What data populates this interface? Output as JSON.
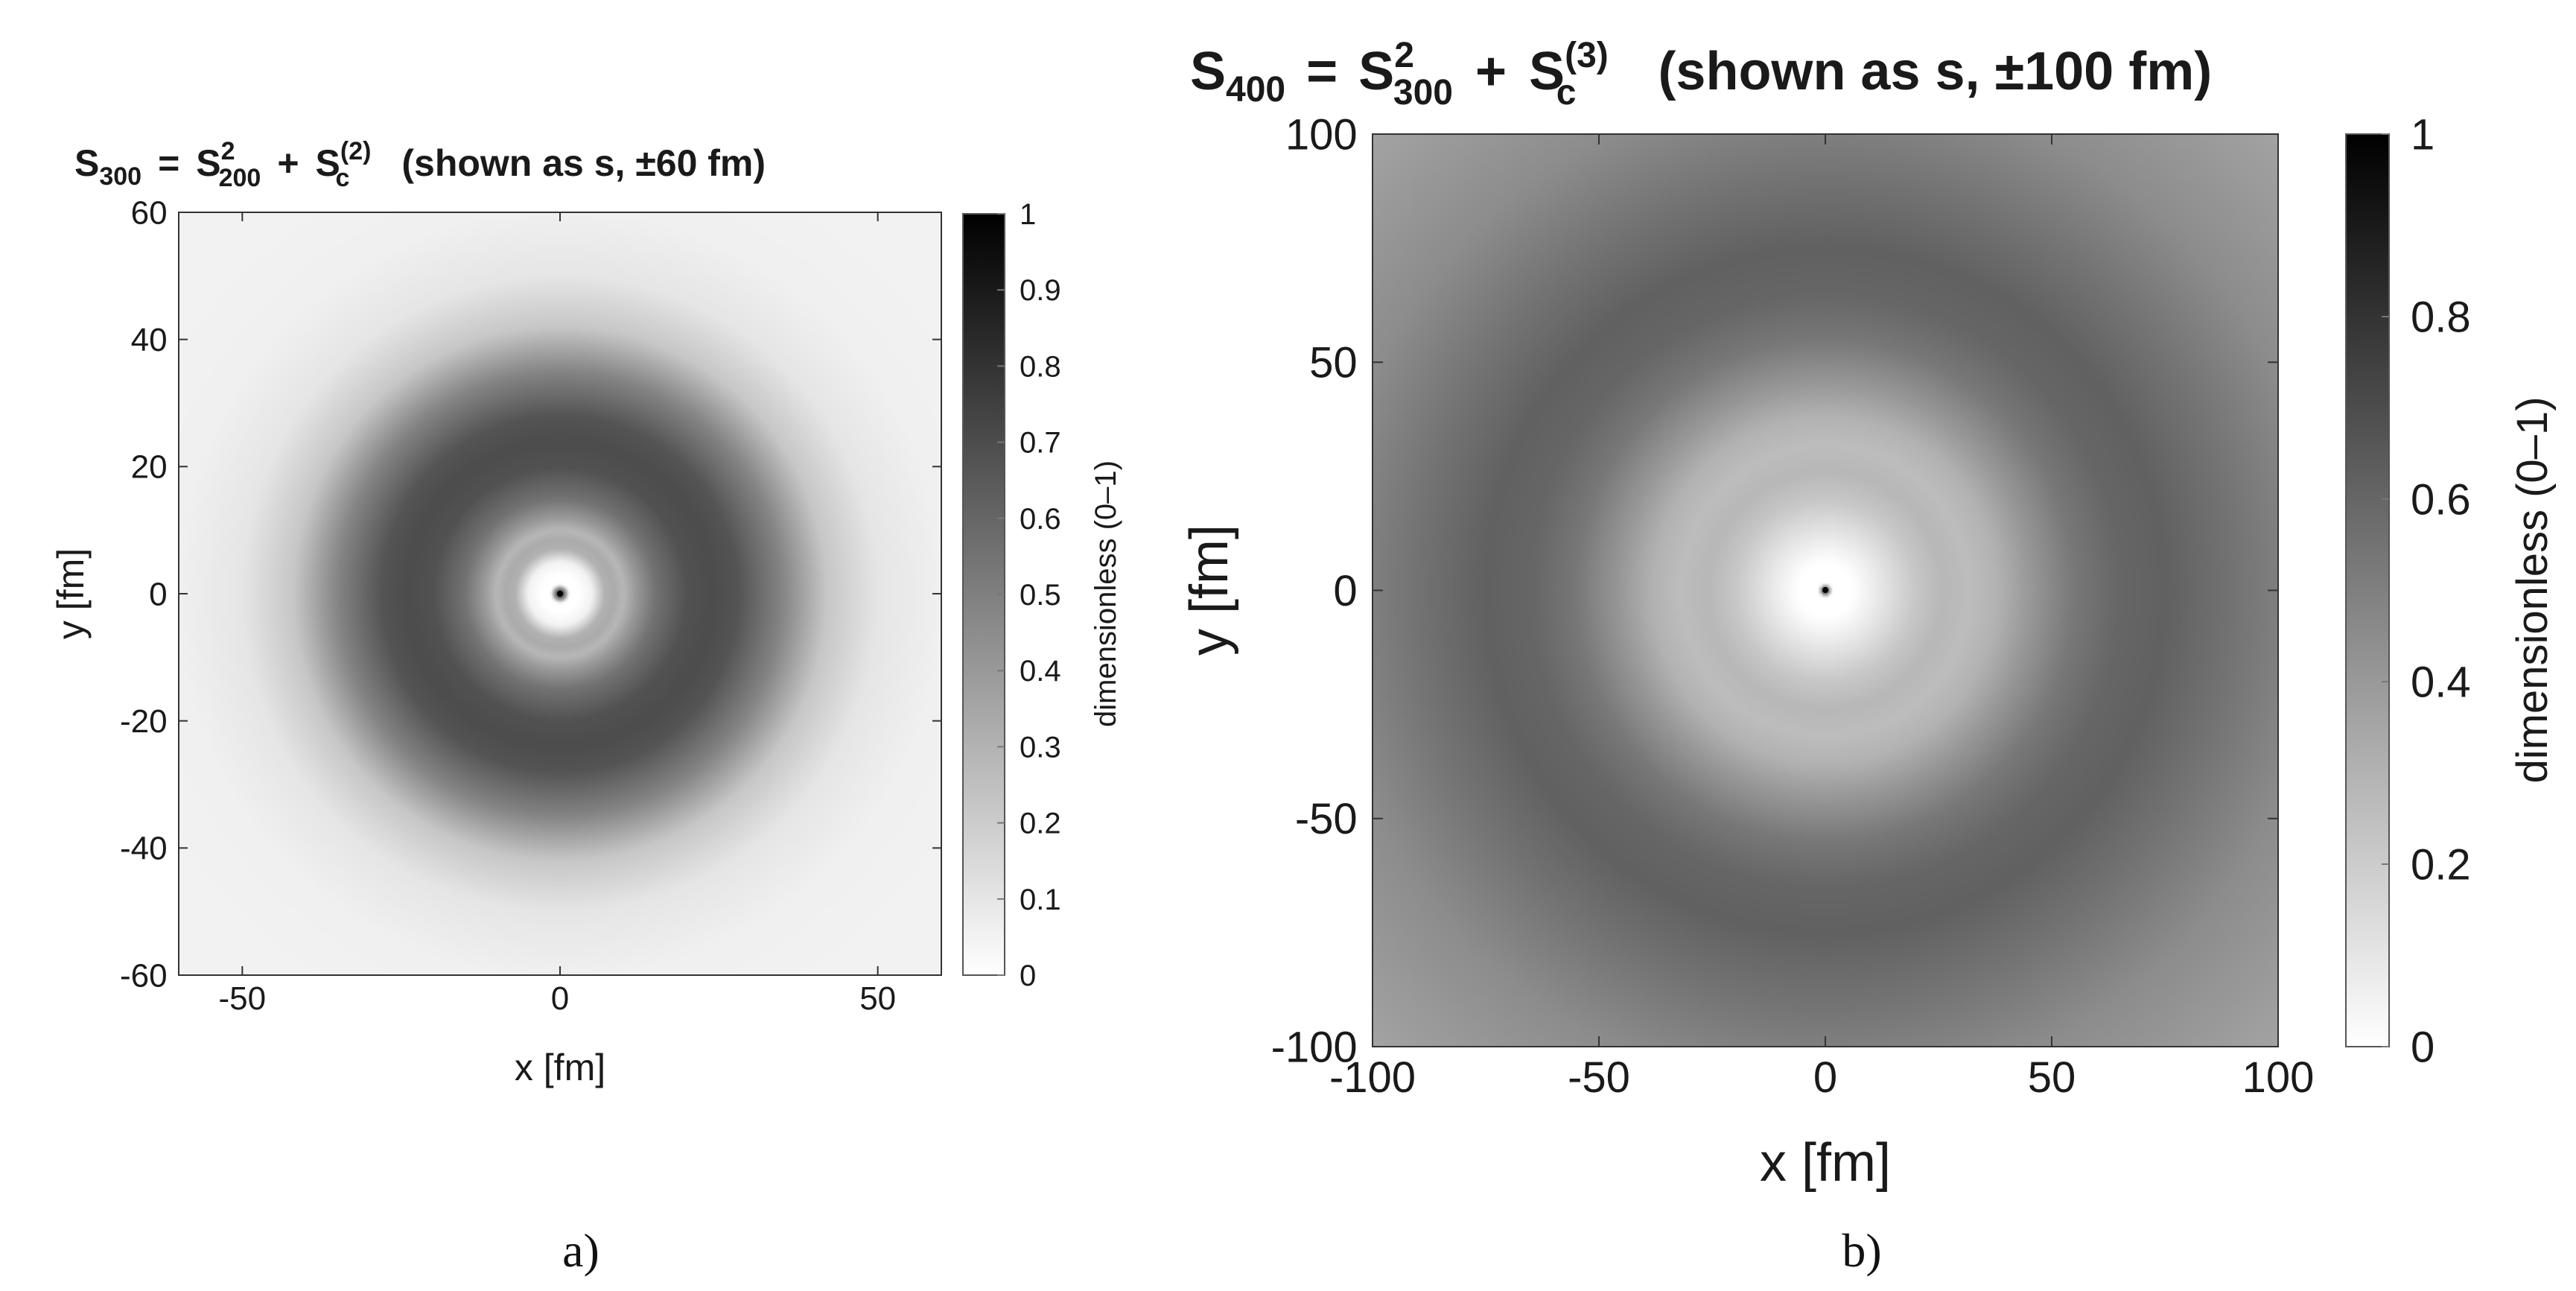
{
  "chart_data": [
    {
      "type": "heatmap",
      "panel_label": "a)",
      "title": {
        "lhs": "S",
        "lhs_sub": "300",
        "eq": "=",
        "t1": "S",
        "t1_sup": "2",
        "t1_sub": "200",
        "plus": "+",
        "t2": "S",
        "t2_sup": "(2)",
        "t2_sub": "c",
        "note": "(shown as s, ±60 fm)"
      },
      "xlabel": "x [fm]",
      "ylabel": "y [fm]",
      "xlim": [
        -60,
        60
      ],
      "ylim": [
        -60,
        60
      ],
      "xticks": [
        -50,
        0,
        50
      ],
      "yticks": [
        60,
        40,
        20,
        0,
        -20,
        -40,
        -60
      ],
      "colorbar": {
        "label": "dimensionless (0–1)",
        "range": [
          0,
          1
        ],
        "ticks": [
          "1",
          "0.9",
          "0.8",
          "0.7",
          "0.6",
          "0.5",
          "0.4",
          "0.3",
          "0.2",
          "0.1",
          "0"
        ]
      },
      "colormap": "gray (0 = white, 1 = black)",
      "radial_profile": {
        "r_fm": [
          0,
          1.5,
          3,
          5,
          7,
          8.5,
          10,
          12,
          15,
          20,
          24,
          28,
          35,
          42,
          50,
          60,
          75,
          85
        ],
        "value": [
          1.0,
          0.0,
          0.0,
          0.05,
          0.3,
          0.33,
          0.28,
          0.4,
          0.55,
          0.68,
          0.7,
          0.67,
          0.48,
          0.22,
          0.1,
          0.06,
          0.05,
          0.05
        ]
      }
    },
    {
      "type": "heatmap",
      "panel_label": "b)",
      "title": {
        "lhs": "S",
        "lhs_sub": "400",
        "eq": "=",
        "t1": "S",
        "t1_sup": "2",
        "t1_sub": "300",
        "plus": "+",
        "t2": "S",
        "t2_sup": "(3)",
        "t2_sub": "c",
        "note": "(shown as s, ±100 fm)"
      },
      "xlabel": "x [fm]",
      "ylabel": "y [fm]",
      "xlim": [
        -100,
        100
      ],
      "ylim": [
        -100,
        100
      ],
      "xticks": [
        -100,
        -50,
        0,
        50,
        100
      ],
      "yticks": [
        100,
        50,
        0,
        -50,
        -100
      ],
      "colorbar": {
        "label": "dimensionless (0–1)",
        "range": [
          0,
          1
        ],
        "ticks": [
          "1",
          "0.8",
          "0.6",
          "0.4",
          "0.2",
          "0"
        ]
      },
      "colormap": "gray (0 = white, 1 = black)",
      "radial_profile": {
        "r_fm": [
          0,
          1.5,
          3,
          6,
          10,
          15,
          20,
          26,
          32,
          38,
          45,
          55,
          65,
          75,
          90,
          110,
          145
        ],
        "value": [
          1.0,
          0.0,
          0.0,
          0.0,
          0.06,
          0.14,
          0.22,
          0.28,
          0.26,
          0.3,
          0.4,
          0.53,
          0.6,
          0.62,
          0.55,
          0.45,
          0.35
        ]
      }
    }
  ]
}
